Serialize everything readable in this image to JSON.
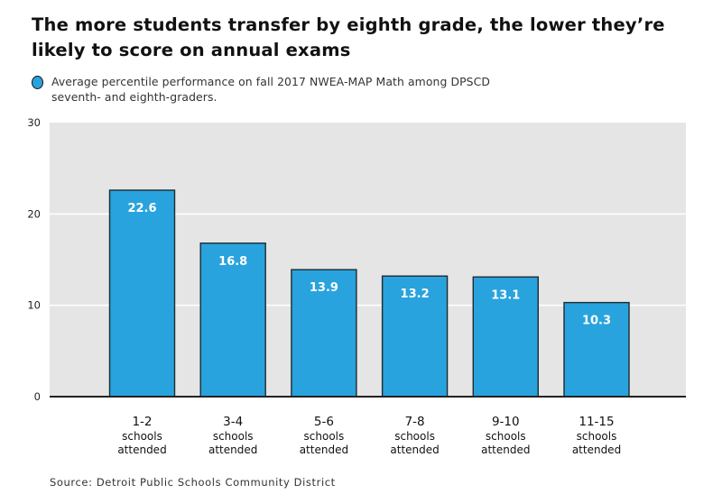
{
  "header": {
    "title": "The more students transfer by eighth grade, the lower they’re likely to score on annual exams"
  },
  "legend": {
    "entries": [
      {
        "label": "Average percentile performance on fall 2017 NWEA-MAP Math among DPSCD seventh- and eighth-graders.",
        "color": "#29a3dd"
      }
    ]
  },
  "footer": {
    "source": "Source: Detroit Public Schools Community District"
  },
  "colors": {
    "bar_fill": "#29a3dd",
    "bar_stroke": "#1e2a30",
    "plot_background": "#e5e5e5",
    "gridline": "#ffffff",
    "axis": "#222222"
  },
  "chart_data": {
    "type": "bar",
    "title": "The more students transfer by eighth grade, the lower they’re likely to score on annual exams",
    "xlabel": "",
    "ylabel": "",
    "categories": [
      "1-2",
      "3-4",
      "5-6",
      "7-8",
      "9-10",
      "11-15"
    ],
    "category_sublabels": [
      "schools",
      "attended"
    ],
    "series": [
      {
        "name": "Average percentile performance on fall 2017 NWEA-MAP Math among DPSCD seventh- and eighth-graders.",
        "values": [
          22.6,
          16.8,
          13.9,
          13.2,
          13.1,
          10.3
        ]
      }
    ],
    "data_labels": [
      "22.6",
      "16.8",
      "13.9",
      "13.2",
      "13.1",
      "10.3"
    ],
    "ylim": [
      0,
      30
    ],
    "yticks": [
      0,
      10,
      20,
      30
    ],
    "ytick_labels": [
      "0",
      "10",
      "20",
      "30"
    ],
    "grid": true,
    "legend_position": "top-left"
  }
}
